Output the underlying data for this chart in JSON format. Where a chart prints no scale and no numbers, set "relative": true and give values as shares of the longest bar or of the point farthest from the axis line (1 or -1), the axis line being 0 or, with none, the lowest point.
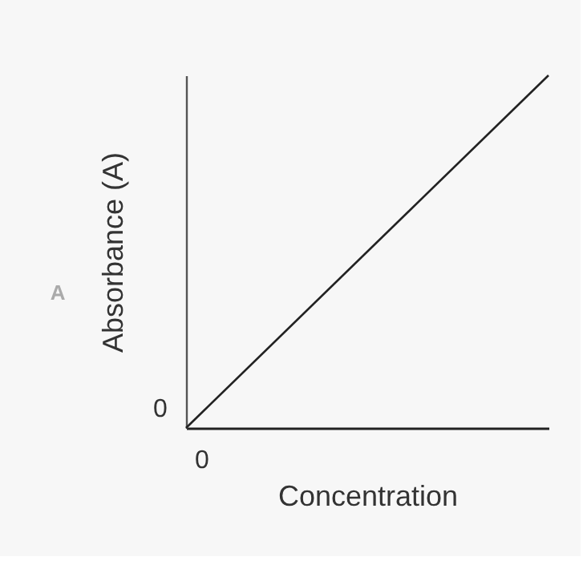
{
  "chart_data": {
    "type": "line",
    "relative": true,
    "xlabel": "Concentration",
    "ylabel": "Absorbance (A)",
    "categories": [
      null,
      null
    ],
    "series": [
      {
        "color": "#222222",
        "values": [
          0,
          1
        ]
      }
    ],
    "annotations": [
      "0",
      "0",
      "A"
    ],
    "marker": "none",
    "line_style": "solid"
  }
}
